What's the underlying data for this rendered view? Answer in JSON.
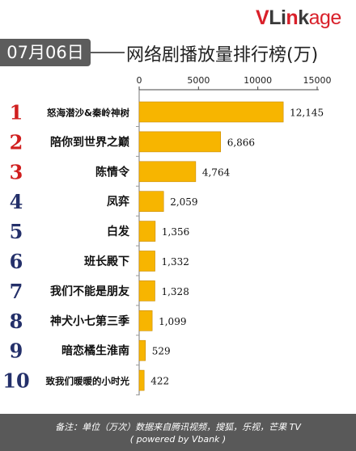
{
  "header": {
    "brand": "VLinkage",
    "date": "07月06日",
    "title": "网络剧播放量排行榜(万)"
  },
  "footer": {
    "note": "备注：单位（万次）数据来自腾讯视频，搜狐，乐视，芒果 TV",
    "powered": "( powered by Vbank )"
  },
  "colors": {
    "bar": "#f7b500",
    "bar_edge": "#c98a00",
    "rank_top3": "#d01e1e",
    "rank_other": "#24306a",
    "header_gray": "#5c5c5c"
  },
  "chart_data": {
    "type": "bar",
    "orientation": "horizontal",
    "title": "网络剧播放量排行榜(万)",
    "xlim": [
      0,
      15000
    ],
    "xticks": [
      "0",
      "5000",
      "10000",
      "15000"
    ],
    "tick_values": [
      0,
      5000,
      10000,
      15000
    ],
    "ranks": [
      "1",
      "2",
      "3",
      "4",
      "5",
      "6",
      "7",
      "8",
      "9",
      "10"
    ],
    "categories": [
      "怒海潜沙&秦岭神树",
      "陪你到世界之巅",
      "陈情令",
      "凤弈",
      "白发",
      "班长殿下",
      "我们不能是朋友",
      "神犬小七第三季",
      "暗恋橘生淮南",
      "致我们暖暖的小时光"
    ],
    "values": [
      12145,
      6866,
      4764,
      2059,
      1356,
      1332,
      1328,
      1099,
      529,
      422
    ],
    "value_labels": [
      "12,145",
      "6,866",
      "4,764",
      "2,059",
      "1,356",
      "1,332",
      "1,328",
      "1,099",
      "529",
      "422"
    ]
  }
}
